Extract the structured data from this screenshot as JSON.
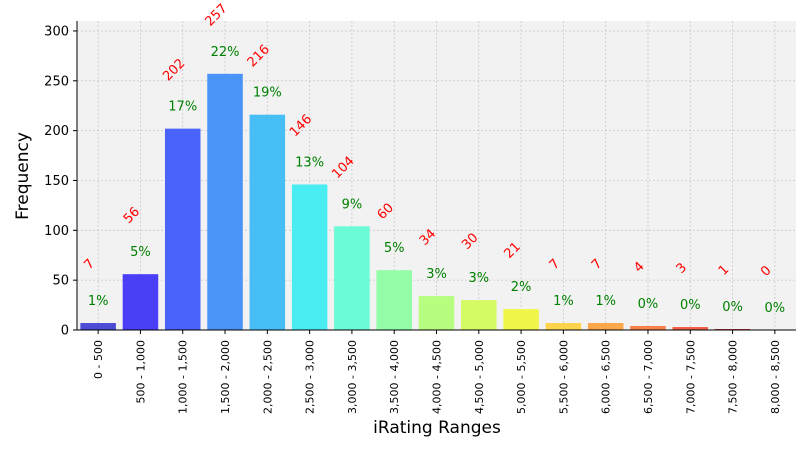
{
  "chart_data": {
    "type": "bar",
    "xlabel": "iRating Ranges",
    "ylabel": "Frequency",
    "ylim": [
      0,
      310
    ],
    "yticks": [
      0,
      50,
      100,
      150,
      200,
      250,
      300
    ],
    "grid": true,
    "categories": [
      "0 - 500",
      "500 - 1,000",
      "1,000 - 1,500",
      "1,500 - 2,000",
      "2,000 - 2,500",
      "2,500 - 3,000",
      "3,000 - 3,500",
      "3,500 - 4,000",
      "4,000 - 4,500",
      "4,500 - 5,000",
      "5,000 - 5,500",
      "5,500 - 6,000",
      "6,000 - 6,500",
      "6,500 - 7,000",
      "7,000 - 7,500",
      "7,500 - 8,000",
      "8,000 - 8,500"
    ],
    "values": [
      7,
      56,
      202,
      257,
      216,
      146,
      104,
      60,
      34,
      30,
      21,
      7,
      7,
      4,
      3,
      1,
      0
    ],
    "percent_labels": [
      "1%",
      "5%",
      "17%",
      "22%",
      "19%",
      "13%",
      "9%",
      "5%",
      "3%",
      "3%",
      "2%",
      "1%",
      "1%",
      "0%",
      "0%",
      "0%",
      "0%"
    ],
    "colors": [
      "#4b4bd6",
      "#4a3ff7",
      "#4a64fb",
      "#4a94f7",
      "#48bef7",
      "#49ecf1",
      "#6bfbd6",
      "#93fda8",
      "#b6fd80",
      "#d4fb64",
      "#f1f64b",
      "#fdd34c",
      "#fda74a",
      "#f9814a",
      "#f25f49",
      "#d64040",
      "#b31a1a"
    ],
    "count_label_color": "#ff0000",
    "percent_label_color": "#008000"
  }
}
